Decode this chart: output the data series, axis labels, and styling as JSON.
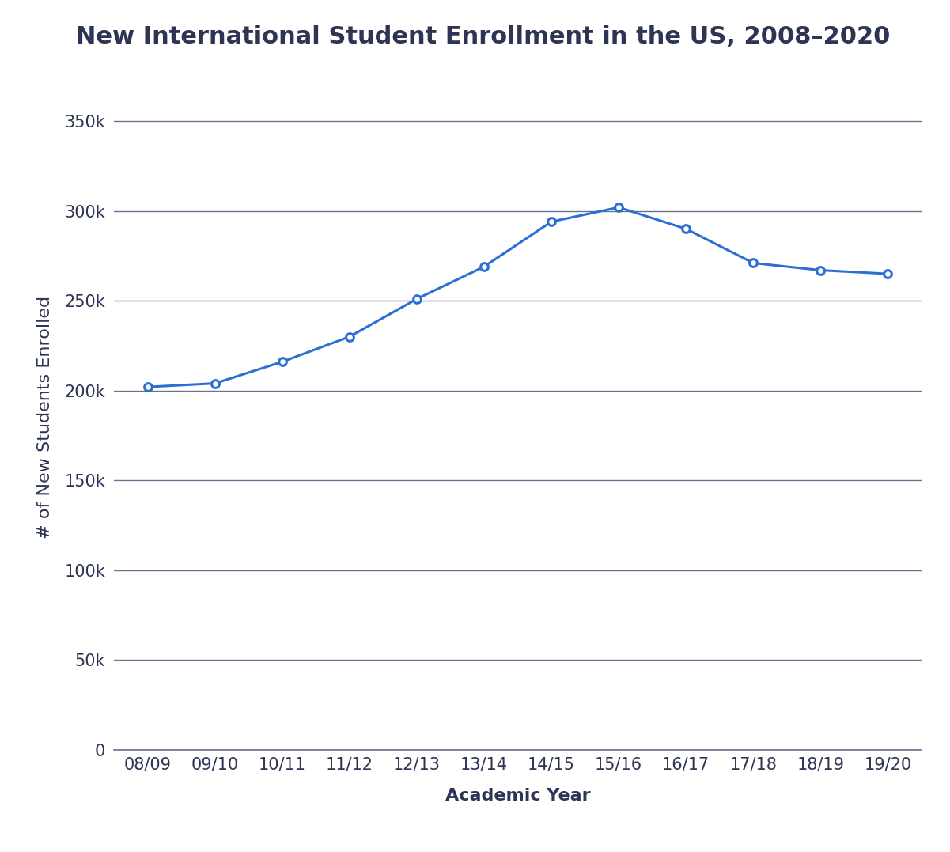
{
  "title": "New International Student Enrollment in the US, 2008–2020",
  "xlabel": "Academic Year",
  "ylabel": "# of New Students Enrolled",
  "categories": [
    "08/09",
    "09/10",
    "10/11",
    "11/12",
    "12/13",
    "13/14",
    "14/15",
    "15/16",
    "16/17",
    "17/18",
    "18/19",
    "19/20"
  ],
  "values": [
    202000,
    204000,
    216000,
    230000,
    251000,
    269000,
    294000,
    302000,
    290000,
    271000,
    267000,
    265000
  ],
  "line_color": "#2B6FD4",
  "marker_color": "#2B6FD4",
  "background_color": "#ffffff",
  "grid_color": "#4d5a7c",
  "tick_color": "#2d3454",
  "title_color": "#2d3454",
  "label_color": "#2d3454",
  "ylim": [
    0,
    370000
  ],
  "yticks": [
    0,
    50000,
    100000,
    150000,
    200000,
    250000,
    300000,
    350000
  ],
  "title_fontsize": 22,
  "axis_label_fontsize": 16,
  "tick_fontsize": 15,
  "line_width": 2.2,
  "marker_size": 7
}
